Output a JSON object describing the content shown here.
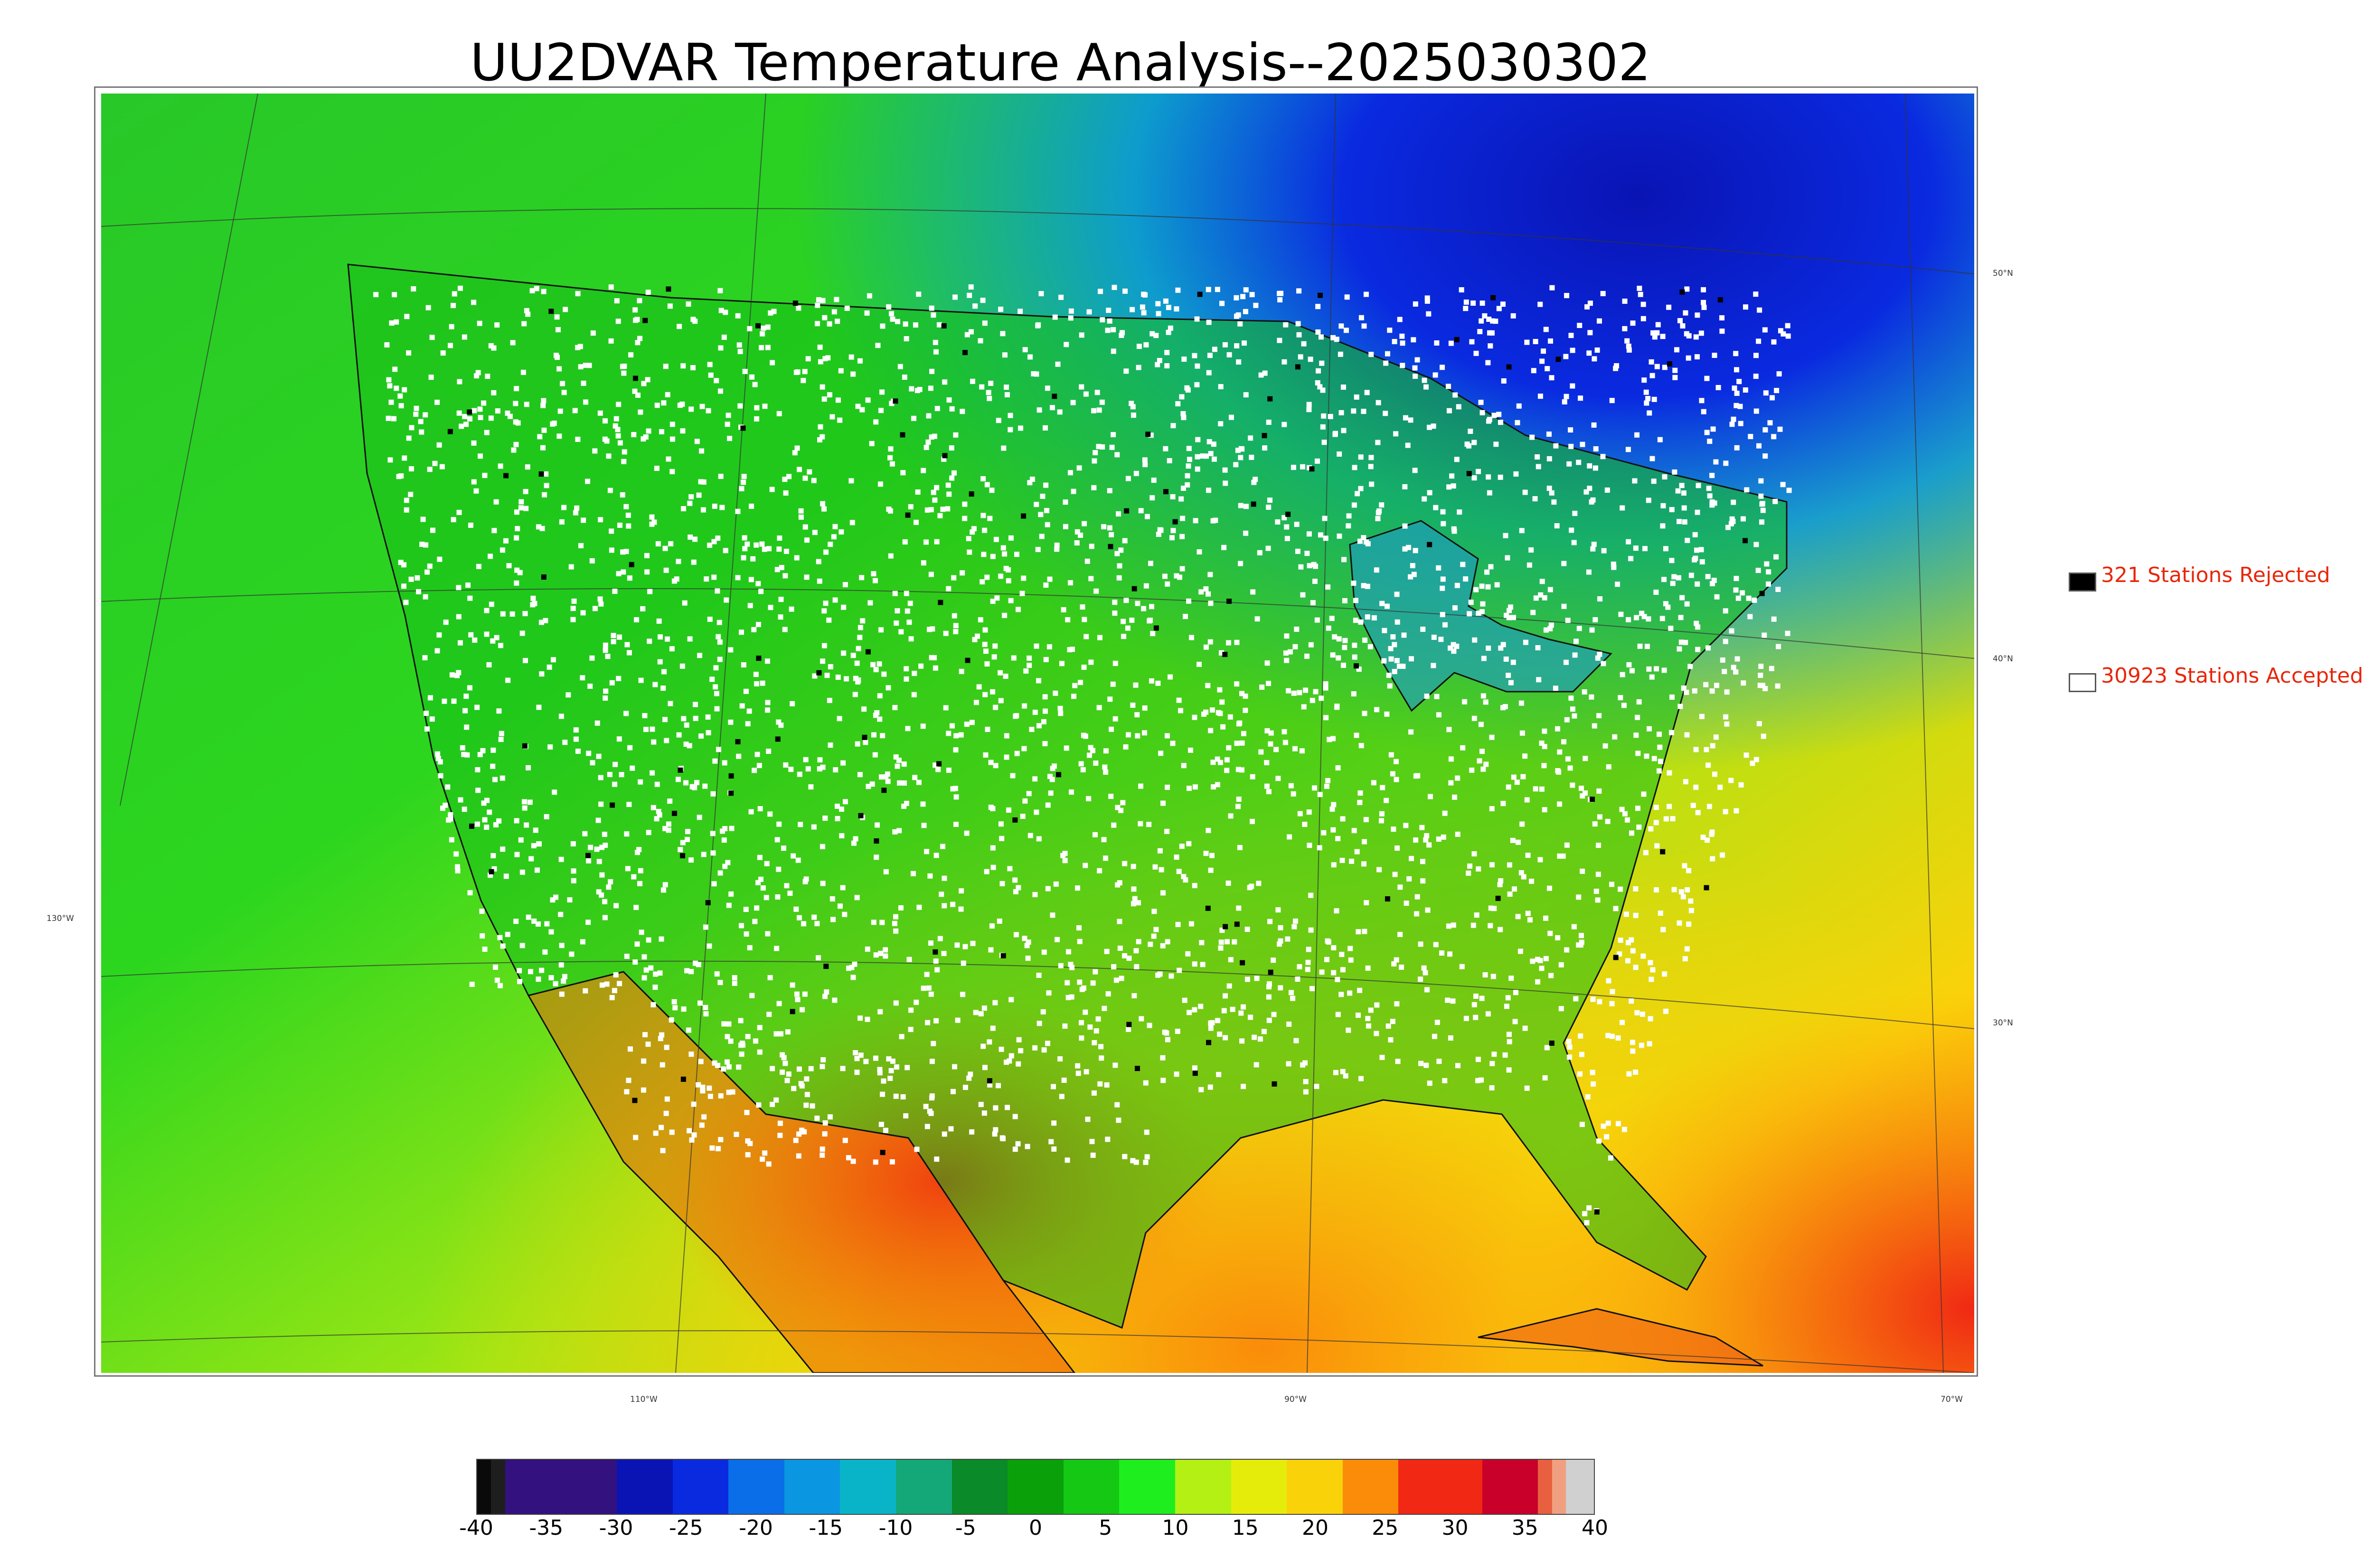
{
  "title": "UU2DVAR Temperature Analysis--2025030302",
  "graticule": {
    "lat_labels": [
      "50°N",
      "40°N",
      "30°N"
    ],
    "lon_labels": [
      "130°W",
      "110°W",
      "90°W",
      "70°W"
    ]
  },
  "legend": {
    "rejected": {
      "count": 321,
      "label": "321 Stations Rejected",
      "color": "#000000"
    },
    "accepted": {
      "count": 30923,
      "label": "30923 Stations Accepted",
      "color": "#ffffff"
    },
    "text_color": "#e8260a"
  },
  "colorbar": {
    "ticks": [
      "-40",
      "-35",
      "-30",
      "-25",
      "-20",
      "-15",
      "-10",
      "-5",
      "0",
      "5",
      "10",
      "15",
      "20",
      "25",
      "30",
      "35",
      "40"
    ],
    "min": -40,
    "max": 40,
    "bins": [
      {
        "from": -40,
        "to": -39,
        "color": "#0a0a0a"
      },
      {
        "from": -39,
        "to": -38,
        "color": "#1e1e1e"
      },
      {
        "from": -38,
        "to": -30,
        "color": "#33117f"
      },
      {
        "from": -30,
        "to": -26,
        "color": "#0a14b4"
      },
      {
        "from": -26,
        "to": -22,
        "color": "#0a2ae0"
      },
      {
        "from": -22,
        "to": -18,
        "color": "#0a6ee8"
      },
      {
        "from": -18,
        "to": -14,
        "color": "#0a96e0"
      },
      {
        "from": -14,
        "to": -10,
        "color": "#0ab4c8"
      },
      {
        "from": -10,
        "to": -6,
        "color": "#14a878"
      },
      {
        "from": -6,
        "to": -2,
        "color": "#0a8a28"
      },
      {
        "from": -2,
        "to": 2,
        "color": "#0aa00a"
      },
      {
        "from": 2,
        "to": 6,
        "color": "#14c814"
      },
      {
        "from": 6,
        "to": 10,
        "color": "#1eee1e"
      },
      {
        "from": 10,
        "to": 14,
        "color": "#b4f014"
      },
      {
        "from": 14,
        "to": 18,
        "color": "#e6ec0a"
      },
      {
        "from": 18,
        "to": 22,
        "color": "#fad20a"
      },
      {
        "from": 22,
        "to": 26,
        "color": "#fa8c0a"
      },
      {
        "from": 26,
        "to": 32,
        "color": "#f02814"
      },
      {
        "from": 32,
        "to": 36,
        "color": "#c8002a"
      },
      {
        "from": 36,
        "to": 37,
        "color": "#e86040"
      },
      {
        "from": 37,
        "to": 38,
        "color": "#f0a080"
      },
      {
        "from": 38,
        "to": 40,
        "color": "#d0d0d0"
      }
    ]
  }
}
